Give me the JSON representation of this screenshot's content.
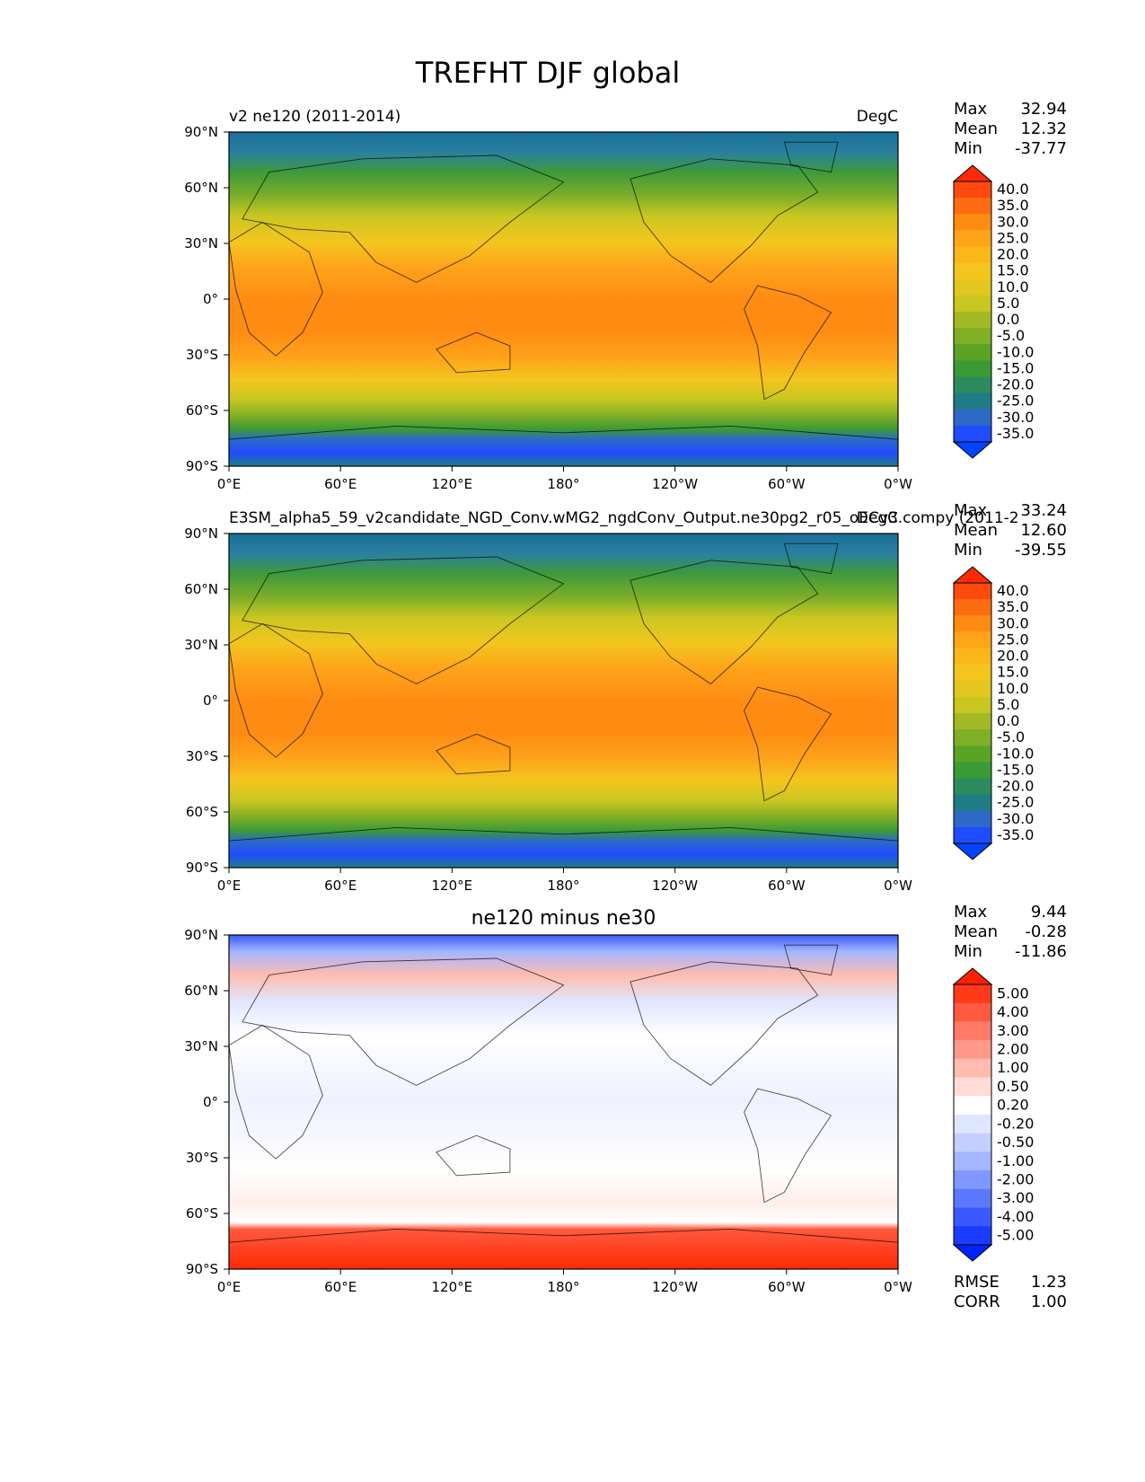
{
  "title": "TREFHT DJF global",
  "chart_data": [
    {
      "type": "heatmap",
      "title_left": "v2 ne120 (2011-2014)",
      "title_center": "",
      "title_right": "DegC",
      "stats": [
        {
          "label": "Max",
          "value": "32.94"
        },
        {
          "label": "Mean",
          "value": "12.32"
        },
        {
          "label": "Min",
          "value": "-37.77"
        }
      ],
      "colorbar_ticks": [
        "40.0",
        "35.0",
        "30.0",
        "25.0",
        "20.0",
        "15.0",
        "10.0",
        "5.0",
        "0.0",
        "-5.0",
        "-10.0",
        "-15.0",
        "-20.0",
        "-25.0",
        "-30.0",
        "-35.0"
      ],
      "colorbar_colors": [
        "#fe4a0f",
        "#fe6c11",
        "#fe8c13",
        "#fea51a",
        "#f9b719",
        "#f4c51f",
        "#e3c61f",
        "#c9c621",
        "#a3ba26",
        "#7faf27",
        "#5aa325",
        "#3a9a35",
        "#2b8b5d",
        "#1f7c86",
        "#2d6ac8",
        "#1f4cff"
      ],
      "extend_colors": {
        "max": "#ff2a05",
        "min": "#0044ff"
      },
      "xticks": [
        "0°E",
        "60°E",
        "120°E",
        "180°",
        "120°W",
        "60°W",
        "0°W"
      ],
      "yticks": [
        "90°N",
        "60°N",
        "30°N",
        "0°",
        "30°S",
        "60°S",
        "90°S"
      ],
      "bottom_stats": []
    },
    {
      "type": "heatmap",
      "title_left": "E3SM_alpha5_59_v2candidate_NGD_Conv.wMG2_ngdConv_Output.ne30pg2_r05_oECv3.compy (2011-2",
      "title_center": "",
      "title_right": "DegC",
      "stats": [
        {
          "label": "Max",
          "value": "33.24"
        },
        {
          "label": "Mean",
          "value": "12.60"
        },
        {
          "label": "Min",
          "value": "-39.55"
        }
      ],
      "colorbar_ticks": [
        "40.0",
        "35.0",
        "30.0",
        "25.0",
        "20.0",
        "15.0",
        "10.0",
        "5.0",
        "0.0",
        "-5.0",
        "-10.0",
        "-15.0",
        "-20.0",
        "-25.0",
        "-30.0",
        "-35.0"
      ],
      "colorbar_colors": [
        "#fe4a0f",
        "#fe6c11",
        "#fe8c13",
        "#fea51a",
        "#f9b719",
        "#f4c51f",
        "#e3c61f",
        "#c9c621",
        "#a3ba26",
        "#7faf27",
        "#5aa325",
        "#3a9a35",
        "#2b8b5d",
        "#1f7c86",
        "#2d6ac8",
        "#1f4cff"
      ],
      "extend_colors": {
        "max": "#ff2a05",
        "min": "#0044ff"
      },
      "xticks": [
        "0°E",
        "60°E",
        "120°E",
        "180°",
        "120°W",
        "60°W",
        "0°W"
      ],
      "yticks": [
        "90°N",
        "60°N",
        "30°N",
        "0°",
        "30°S",
        "60°S",
        "90°S"
      ],
      "bottom_stats": []
    },
    {
      "type": "heatmap",
      "title_left": "",
      "title_center": "ne120 minus ne30",
      "title_right": "",
      "stats": [
        {
          "label": "Max",
          "value": "9.44"
        },
        {
          "label": "Mean",
          "value": "-0.28"
        },
        {
          "label": "Min",
          "value": "-11.86"
        }
      ],
      "colorbar_ticks": [
        "5.00",
        "4.00",
        "3.00",
        "2.00",
        "1.00",
        "0.50",
        "0.20",
        "-0.20",
        "-0.50",
        "-1.00",
        "-2.00",
        "-3.00",
        "-4.00",
        "-5.00"
      ],
      "colorbar_colors": [
        "#ff3a1a",
        "#ff5a40",
        "#ff7a66",
        "#ff9a8a",
        "#ffbcb0",
        "#ffdcd5",
        "#ffffff",
        "#dfe6ff",
        "#c2cfff",
        "#a3b6ff",
        "#7f97ff",
        "#5c78ff",
        "#3a5aff",
        "#1a3cff"
      ],
      "extend_colors": {
        "max": "#ff2200",
        "min": "#0022ff"
      },
      "xticks": [
        "0°E",
        "60°E",
        "120°E",
        "180°",
        "120°W",
        "60°W",
        "0°W"
      ],
      "yticks": [
        "90°N",
        "60°N",
        "30°N",
        "0°",
        "30°S",
        "60°S",
        "90°S"
      ],
      "bottom_stats": [
        {
          "label": "RMSE",
          "value": "1.23"
        },
        {
          "label": "CORR",
          "value": "1.00"
        }
      ]
    }
  ]
}
